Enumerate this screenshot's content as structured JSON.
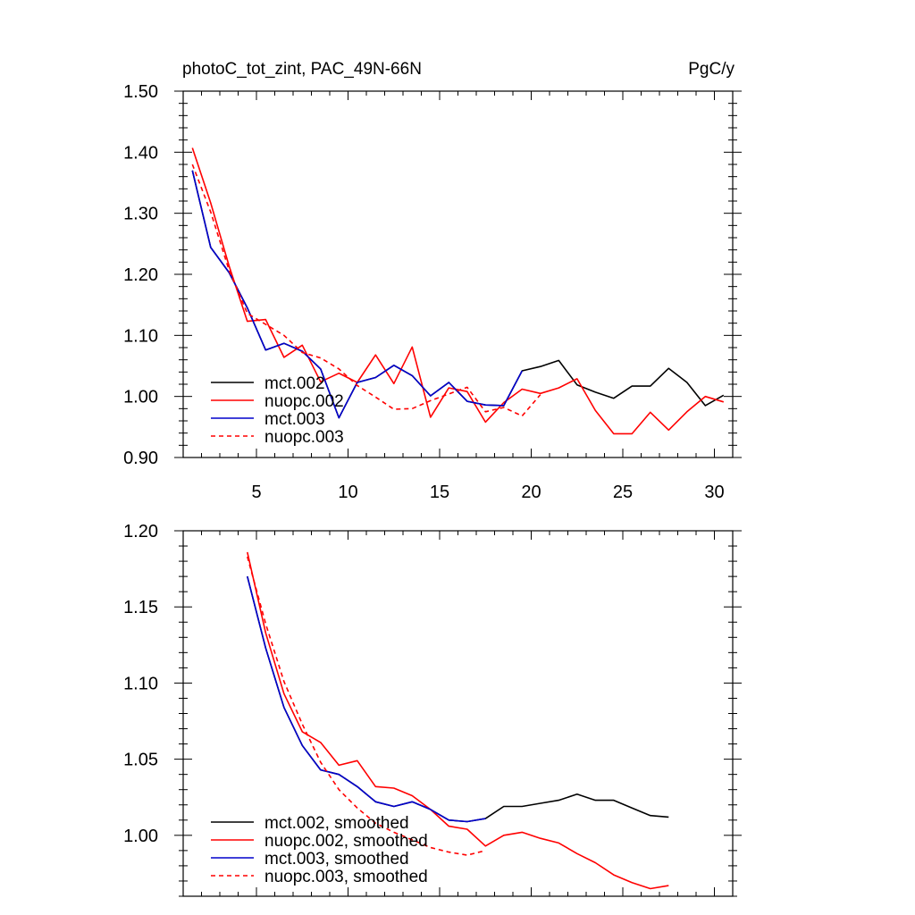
{
  "chart_data": [
    {
      "type": "line",
      "title": "photoC_tot_zint, PAC_49N-66N",
      "units": "PgC/y",
      "xlabel": "",
      "ylabel": "",
      "xlim": [
        1,
        31
      ],
      "ylim": [
        0.9,
        1.5
      ],
      "x_ticks": [
        5,
        10,
        15,
        20,
        25,
        30
      ],
      "x_tick_labels": [
        "5",
        "10",
        "15",
        "20",
        "25",
        "30"
      ],
      "y_ticks": [
        0.9,
        1.0,
        1.1,
        1.2,
        1.3,
        1.4,
        1.5
      ],
      "y_tick_labels": [
        "0.90",
        "1.00",
        "1.10",
        "1.20",
        "1.30",
        "1.40",
        "1.50"
      ],
      "legend_position": "bottom-left",
      "series": [
        {
          "name": "mct.002",
          "color": "#000000",
          "dashed": false,
          "x": [
            1.5,
            2.5,
            3.5,
            4.5,
            5.5,
            6.5,
            7.5,
            8.5,
            9.5,
            10.5,
            11.5,
            12.5,
            13.5,
            14.5,
            15.5,
            16.5,
            17.5,
            18.5,
            19.5,
            20.5,
            21.5,
            22.5,
            23.5,
            24.5,
            25.5,
            26.5,
            27.5,
            28.5,
            29.5,
            30.5
          ],
          "values": [
            1.37,
            1.244,
            1.203,
            1.145,
            1.076,
            1.087,
            1.074,
            1.045,
            0.965,
            1.023,
            1.031,
            1.051,
            1.034,
            1.001,
            1.023,
            0.992,
            0.986,
            0.985,
            1.042,
            1.049,
            1.059,
            1.019,
            1.007,
            0.997,
            1.017,
            1.017,
            1.046,
            1.023,
            0.985,
            1.002
          ]
        },
        {
          "name": "nuopc.002",
          "color": "#ff0000",
          "dashed": false,
          "x": [
            1.5,
            2.5,
            3.5,
            4.5,
            5.5,
            6.5,
            7.5,
            8.5,
            9.5,
            10.5,
            11.5,
            12.5,
            13.5,
            14.5,
            15.5,
            16.5,
            17.5,
            18.5,
            19.5,
            20.5,
            21.5,
            22.5,
            23.5,
            24.5,
            25.5,
            26.5,
            27.5,
            28.5,
            29.5,
            30.5
          ],
          "values": [
            1.407,
            1.317,
            1.214,
            1.123,
            1.126,
            1.064,
            1.084,
            1.024,
            1.038,
            1.023,
            1.068,
            1.021,
            1.081,
            0.966,
            1.014,
            1.008,
            0.958,
            0.99,
            1.012,
            1.005,
            1.014,
            1.029,
            0.977,
            0.939,
            0.939,
            0.974,
            0.945,
            0.975,
            1.0,
            0.991
          ]
        },
        {
          "name": "mct.003",
          "color": "#0000cc",
          "dashed": false,
          "x": [
            1.5,
            2.5,
            3.5,
            4.5,
            5.5,
            6.5,
            7.5,
            8.5,
            9.5,
            10.5,
            11.5,
            12.5,
            13.5,
            14.5,
            15.5,
            16.5,
            17.5,
            18.5,
            19.5
          ],
          "values": [
            1.37,
            1.244,
            1.203,
            1.145,
            1.076,
            1.087,
            1.074,
            1.045,
            0.965,
            1.023,
            1.031,
            1.051,
            1.034,
            1.001,
            1.023,
            0.992,
            0.986,
            0.985,
            1.042
          ]
        },
        {
          "name": "nuopc.003",
          "color": "#ff0000",
          "dashed": true,
          "x": [
            1.5,
            2.5,
            3.5,
            4.5,
            5.5,
            6.5,
            7.5,
            8.5,
            9.5,
            10.5,
            11.5,
            12.5,
            13.5,
            14.5,
            15.5,
            16.5,
            17.5,
            18.5,
            19.5,
            20.5
          ],
          "values": [
            1.38,
            1.302,
            1.207,
            1.136,
            1.118,
            1.1,
            1.072,
            1.063,
            1.045,
            1.018,
            0.999,
            0.979,
            0.98,
            0.993,
            1.004,
            1.015,
            0.975,
            0.982,
            0.968,
            1.003
          ]
        }
      ]
    },
    {
      "type": "line",
      "title": "",
      "xlabel": "",
      "ylabel": "",
      "xlim": [
        1,
        31
      ],
      "ylim": [
        0.96,
        1.2
      ],
      "x_ticks": [
        5,
        10,
        15,
        20,
        25,
        30
      ],
      "y_ticks": [
        1.0,
        1.05,
        1.1,
        1.15,
        1.2
      ],
      "y_tick_labels": [
        "1.00",
        "1.05",
        "1.10",
        "1.15",
        "1.20"
      ],
      "legend_position": "bottom-left",
      "series": [
        {
          "name": "mct.002, smoothed",
          "color": "#000000",
          "dashed": false,
          "x": [
            4.5,
            5.5,
            6.5,
            7.5,
            8.5,
            9.5,
            10.5,
            11.5,
            12.5,
            13.5,
            14.5,
            15.5,
            16.5,
            17.5,
            18.5,
            19.5,
            20.5,
            21.5,
            22.5,
            23.5,
            24.5,
            25.5,
            26.5,
            27.5
          ],
          "values": [
            1.17,
            1.123,
            1.084,
            1.059,
            1.043,
            1.04,
            1.032,
            1.022,
            1.019,
            1.022,
            1.017,
            1.01,
            1.009,
            1.011,
            1.019,
            1.019,
            1.021,
            1.023,
            1.027,
            1.023,
            1.023,
            1.018,
            1.013,
            1.012
          ]
        },
        {
          "name": "nuopc.002, smoothed",
          "color": "#ff0000",
          "dashed": false,
          "x": [
            4.5,
            5.5,
            6.5,
            7.5,
            8.5,
            9.5,
            10.5,
            11.5,
            12.5,
            13.5,
            14.5,
            15.5,
            16.5,
            17.5,
            18.5,
            19.5,
            20.5,
            21.5,
            22.5,
            23.5,
            24.5,
            25.5,
            26.5,
            27.5
          ],
          "values": [
            1.186,
            1.133,
            1.093,
            1.068,
            1.061,
            1.046,
            1.049,
            1.032,
            1.031,
            1.026,
            1.017,
            1.006,
            1.004,
            0.993,
            1.0,
            1.002,
            0.998,
            0.995,
            0.988,
            0.982,
            0.974,
            0.969,
            0.965,
            0.967
          ]
        },
        {
          "name": "mct.003, smoothed",
          "color": "#0000cc",
          "dashed": false,
          "x": [
            4.5,
            5.5,
            6.5,
            7.5,
            8.5,
            9.5,
            10.5,
            11.5,
            12.5,
            13.5,
            14.5,
            15.5,
            16.5,
            17.5
          ],
          "values": [
            1.17,
            1.123,
            1.084,
            1.059,
            1.043,
            1.04,
            1.032,
            1.022,
            1.019,
            1.022,
            1.017,
            1.01,
            1.009,
            1.011
          ]
        },
        {
          "name": "nuopc.003, smoothed",
          "color": "#ff0000",
          "dashed": true,
          "x": [
            4.5,
            5.5,
            6.5,
            7.5,
            8.5,
            9.5,
            10.5,
            11.5,
            12.5,
            13.5,
            14.5,
            15.5,
            16.5,
            17.5
          ],
          "values": [
            1.183,
            1.139,
            1.101,
            1.073,
            1.048,
            1.03,
            1.018,
            1.008,
            1.002,
            0.997,
            0.992,
            0.989,
            0.987,
            0.99
          ]
        }
      ]
    }
  ]
}
